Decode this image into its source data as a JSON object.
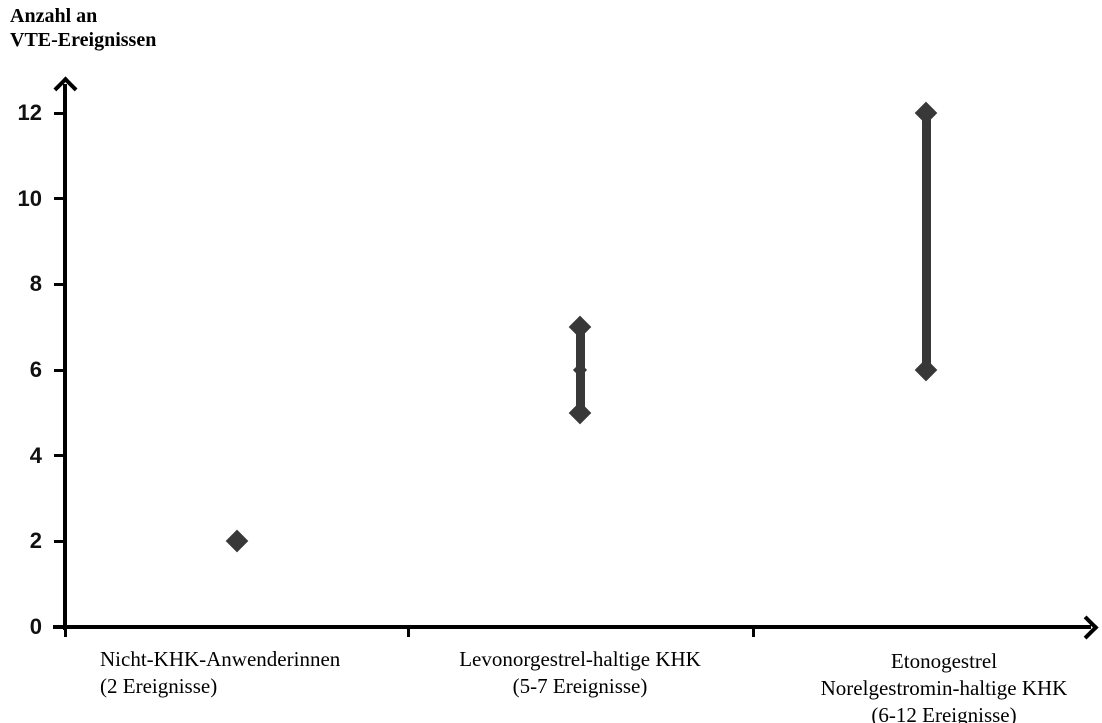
{
  "header": {
    "y_axis_title_line1": "Anzahl an",
    "y_axis_title_line2": "VTE-Ereignissen"
  },
  "chart_data": {
    "type": "scatter",
    "subtype": "range-dot-plot",
    "title": "",
    "ylabel": "Anzahl an VTE-Ereignissen",
    "xlabel": "",
    "ylim": [
      0,
      13
    ],
    "yticks": [
      0,
      2,
      4,
      6,
      8,
      10,
      12
    ],
    "grid": false,
    "legend": false,
    "marker_shape": "diamond",
    "marker_color": "#383838",
    "axis_color": "#000000",
    "categories": [
      {
        "label_lines": [
          "Nicht-KHK-Anwenderinnen",
          "(2 Ereignisse)"
        ],
        "min": 2,
        "max": 2
      },
      {
        "label_lines": [
          "Levonorgestrel-haltige KHK",
          "(5-7 Ereignisse)"
        ],
        "min": 5,
        "max": 7,
        "joint_value": 6
      },
      {
        "label_lines": [
          "Etonogestrel",
          "Norelgestromin-haltige KHK",
          "(6-12 Ereignisse)"
        ],
        "min": 6,
        "max": 12
      }
    ]
  }
}
